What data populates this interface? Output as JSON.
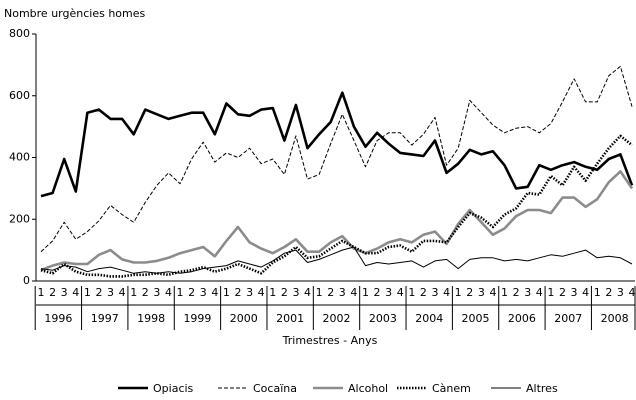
{
  "chart_data": {
    "type": "line",
    "y_label": "Nombre urgències homes",
    "x_label": "Trimestres - Anys",
    "categories": [
      "1",
      "2",
      "3",
      "4",
      "1",
      "2",
      "3",
      "4",
      "1",
      "2",
      "3",
      "4",
      "1",
      "2",
      "3",
      "4",
      "1",
      "2",
      "3",
      "4",
      "1",
      "2",
      "3",
      "4",
      "1",
      "2",
      "3",
      "4",
      "1",
      "2",
      "3",
      "4",
      "1",
      "2",
      "3",
      "4",
      "1",
      "2",
      "3",
      "4",
      "1",
      "2",
      "3",
      "4",
      "1",
      "2",
      "3",
      "4",
      "1",
      "2",
      "3",
      "4"
    ],
    "years": [
      "1996",
      "1997",
      "1998",
      "1999",
      "2000",
      "2001",
      "2002",
      "2003",
      "2004",
      "2005",
      "2006",
      "2007",
      "2008"
    ],
    "ylim": [
      0,
      800
    ],
    "yticks": [
      0,
      200,
      400,
      600,
      800
    ],
    "series": [
      {
        "name": "Opiacis",
        "color": "#000000",
        "line_style": "solid",
        "weight": "bold",
        "values": [
          275,
          285,
          395,
          290,
          545,
          555,
          525,
          525,
          475,
          555,
          540,
          525,
          535,
          545,
          545,
          475,
          575,
          540,
          535,
          555,
          560,
          455,
          570,
          430,
          475,
          515,
          610,
          500,
          435,
          480,
          445,
          415,
          410,
          405,
          455,
          350,
          380,
          425,
          410,
          420,
          375,
          300,
          305,
          375,
          360,
          375,
          385,
          370,
          360,
          395,
          410,
          310
        ]
      },
      {
        "name": "Cocaïna",
        "color": "#000000",
        "line_style": "dashed",
        "weight": "normal",
        "values": [
          95,
          130,
          190,
          135,
          160,
          195,
          245,
          215,
          190,
          255,
          310,
          350,
          315,
          395,
          450,
          385,
          415,
          400,
          430,
          380,
          395,
          345,
          470,
          330,
          345,
          445,
          540,
          455,
          370,
          455,
          480,
          480,
          440,
          475,
          530,
          375,
          430,
          585,
          545,
          505,
          480,
          495,
          500,
          480,
          510,
          580,
          655,
          580,
          580,
          665,
          695,
          565
        ]
      },
      {
        "name": "Alcohol",
        "color": "#8c8c8c",
        "line_style": "solid",
        "weight": "bold",
        "values": [
          35,
          50,
          60,
          55,
          55,
          85,
          100,
          70,
          60,
          60,
          65,
          75,
          90,
          100,
          110,
          80,
          130,
          175,
          125,
          105,
          90,
          110,
          135,
          95,
          95,
          125,
          145,
          105,
          90,
          105,
          125,
          135,
          125,
          150,
          160,
          120,
          185,
          230,
          190,
          150,
          170,
          210,
          230,
          230,
          220,
          270,
          270,
          240,
          265,
          320,
          355,
          300
        ]
      },
      {
        "name": "Cànem",
        "color": "#000000",
        "line_style": "dotted",
        "weight": "bold",
        "values": [
          35,
          25,
          55,
          30,
          20,
          20,
          15,
          15,
          20,
          20,
          25,
          20,
          30,
          35,
          45,
          30,
          40,
          55,
          40,
          25,
          60,
          80,
          110,
          75,
          80,
          105,
          130,
          110,
          90,
          90,
          110,
          115,
          95,
          130,
          130,
          125,
          175,
          220,
          205,
          175,
          215,
          235,
          285,
          280,
          340,
          310,
          370,
          325,
          380,
          430,
          470,
          440
        ]
      },
      {
        "name": "Altres",
        "color": "#000000",
        "line_style": "solid",
        "weight": "normal",
        "values": [
          40,
          35,
          50,
          45,
          30,
          40,
          45,
          35,
          25,
          30,
          25,
          30,
          25,
          30,
          40,
          45,
          50,
          65,
          55,
          45,
          65,
          90,
          100,
          60,
          70,
          85,
          100,
          110,
          50,
          60,
          55,
          60,
          65,
          45,
          65,
          70,
          40,
          70,
          75,
          75,
          65,
          70,
          65,
          75,
          85,
          80,
          90,
          100,
          75,
          80,
          75,
          55
        ]
      }
    ]
  }
}
